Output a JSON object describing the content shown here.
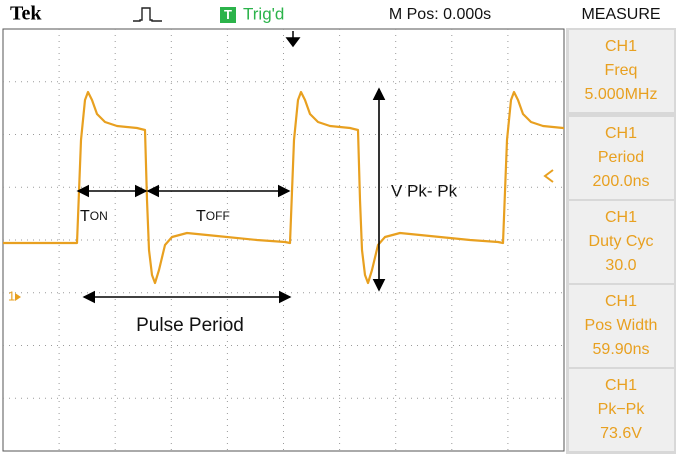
{
  "header": {
    "brand": "Tek",
    "trigger_badge": "T",
    "trigger_status": "Trig'd",
    "position": "M Pos: 0.000s",
    "menu_title": "MEASURE"
  },
  "measurements": [
    {
      "channel": "CH1",
      "label": "Freq",
      "value": "5.000MHz"
    },
    {
      "channel": "CH1",
      "label": "Period",
      "value": "200.0ns"
    },
    {
      "channel": "CH1",
      "label": "Duty Cyc",
      "value": "30.0"
    },
    {
      "channel": "CH1",
      "label": "Pos Width",
      "value": "59.90ns"
    },
    {
      "channel": "CH1",
      "label": "Pk−Pk",
      "value": "73.6V"
    }
  ],
  "annotations": {
    "t_on": {
      "main": "T",
      "sub": "ON"
    },
    "t_off": {
      "main": "T",
      "sub": "OFF"
    },
    "vpp": "V Pk- Pk",
    "pulse_period": "Pulse Period",
    "channel_marker": "1"
  }
}
